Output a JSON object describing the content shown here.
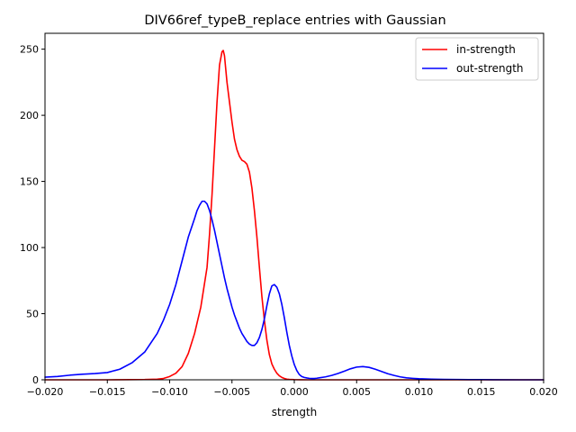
{
  "chart_data": {
    "type": "line",
    "title": "DIV66ref_typeB_replace entries with Gaussian",
    "xlabel": "strength",
    "ylabel": "",
    "xlim": [
      -0.02,
      0.02
    ],
    "ylim": [
      0,
      262
    ],
    "xticks": [
      -0.02,
      -0.015,
      -0.01,
      -0.005,
      0.0,
      0.005,
      0.01,
      0.015,
      0.02
    ],
    "xtick_labels": [
      "−0.020",
      "−0.015",
      "−0.010",
      "−0.005",
      "0.000",
      "0.005",
      "0.010",
      "0.015",
      "0.020"
    ],
    "yticks": [
      0,
      50,
      100,
      150,
      200,
      250
    ],
    "ytick_labels": [
      "0",
      "50",
      "100",
      "150",
      "200",
      "250"
    ],
    "grid": false,
    "legend_position": "upper right",
    "series": [
      {
        "name": "in-strength",
        "color": "#ff0000",
        "x": [
          -0.02,
          -0.015,
          -0.012,
          -0.011,
          -0.0105,
          -0.01,
          -0.0095,
          -0.009,
          -0.0085,
          -0.008,
          -0.0075,
          -0.007,
          -0.0068,
          -0.0066,
          -0.0064,
          -0.0062,
          -0.006,
          -0.0058,
          -0.0057,
          -0.0056,
          -0.0055,
          -0.0054,
          -0.0052,
          -0.005,
          -0.0048,
          -0.0046,
          -0.0044,
          -0.0042,
          -0.004,
          -0.0038,
          -0.0036,
          -0.0034,
          -0.0032,
          -0.003,
          -0.0028,
          -0.0026,
          -0.0024,
          -0.0022,
          -0.002,
          -0.0018,
          -0.0016,
          -0.0014,
          -0.0012,
          -0.001,
          -0.0008,
          -0.0006,
          -0.0004,
          -0.0002,
          0.0,
          0.0005,
          0.001,
          0.002,
          0.005,
          0.01,
          0.015,
          0.02
        ],
        "y": [
          0,
          0,
          0.2,
          0.5,
          1,
          2.5,
          5,
          10,
          20,
          35,
          55,
          85,
          110,
          140,
          175,
          210,
          238,
          248,
          249,
          245,
          235,
          225,
          210,
          195,
          182,
          174,
          169,
          166,
          165,
          163,
          157,
          145,
          128,
          108,
          85,
          63,
          45,
          30,
          19,
          12,
          8,
          5,
          3,
          1.8,
          1,
          0.5,
          0.3,
          0.2,
          0.1,
          0.05,
          0,
          0,
          0,
          0,
          0,
          0
        ]
      },
      {
        "name": "out-strength",
        "color": "#0000ff",
        "x": [
          -0.02,
          -0.019,
          -0.018,
          -0.017,
          -0.016,
          -0.015,
          -0.014,
          -0.013,
          -0.012,
          -0.011,
          -0.0105,
          -0.01,
          -0.0095,
          -0.009,
          -0.0085,
          -0.008,
          -0.0078,
          -0.0076,
          -0.0074,
          -0.0072,
          -0.007,
          -0.0068,
          -0.0066,
          -0.0064,
          -0.0062,
          -0.006,
          -0.0058,
          -0.0056,
          -0.0054,
          -0.0052,
          -0.005,
          -0.0048,
          -0.0046,
          -0.0044,
          -0.0042,
          -0.004,
          -0.0038,
          -0.0036,
          -0.0034,
          -0.0032,
          -0.003,
          -0.0028,
          -0.0026,
          -0.0024,
          -0.0022,
          -0.002,
          -0.0018,
          -0.0016,
          -0.0014,
          -0.0012,
          -0.001,
          -0.0008,
          -0.0006,
          -0.0004,
          -0.0002,
          0.0,
          0.0002,
          0.0004,
          0.0006,
          0.0008,
          0.001,
          0.0012,
          0.0014,
          0.0016,
          0.0018,
          0.002,
          0.0025,
          0.003,
          0.0035,
          0.004,
          0.0045,
          0.005,
          0.0055,
          0.006,
          0.0065,
          0.007,
          0.0075,
          0.008,
          0.0085,
          0.009,
          0.0095,
          0.01,
          0.011,
          0.012,
          0.013,
          0.014,
          0.015,
          0.016,
          0.018,
          0.02
        ],
        "y": [
          2,
          2.5,
          3.5,
          4.2,
          4.7,
          5.5,
          8,
          13,
          21,
          35,
          45,
          57,
          72,
          90,
          108,
          122,
          128,
          132,
          135,
          135,
          133,
          128,
          121,
          113,
          104,
          95,
          86,
          77,
          69,
          62,
          55,
          49,
          44,
          39,
          35,
          32,
          29,
          27,
          26,
          26,
          28,
          32,
          38,
          46,
          56,
          65,
          71,
          72,
          70,
          65,
          57,
          47,
          36,
          26,
          18,
          11.5,
          7,
          4,
          2.5,
          1.8,
          1.4,
          1.1,
          1,
          1,
          1.2,
          1.5,
          2.2,
          3.3,
          4.8,
          6.5,
          8.3,
          9.6,
          10,
          9.4,
          8,
          6.3,
          4.6,
          3.3,
          2.2,
          1.5,
          1.1,
          0.8,
          0.5,
          0.3,
          0.2,
          0.1,
          0.1,
          0.05,
          0,
          0
        ]
      }
    ]
  }
}
